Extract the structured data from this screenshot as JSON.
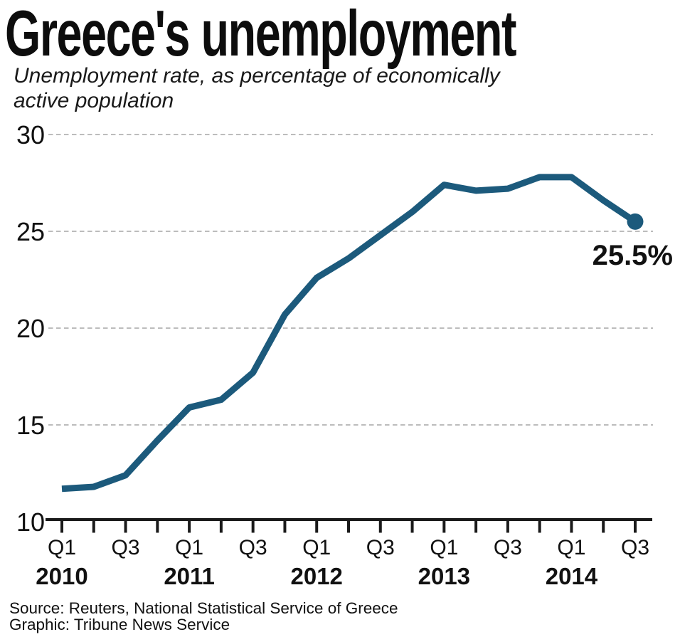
{
  "header": {
    "title": "Greece's unemployment",
    "subtitle_lines": [
      "Unemployment rate, as percentage of economically",
      "active population"
    ]
  },
  "chart_data": {
    "type": "line",
    "title": "Greece's unemployment",
    "subtitle": "Unemployment rate, as percentage of economically active population",
    "series_name": "Unemployment rate (%)",
    "ylim": [
      10,
      30
    ],
    "yticks": [
      30,
      25,
      20,
      15,
      10
    ],
    "grid": "horizontal-dashed",
    "legend": "none",
    "quarters": [
      {
        "year": "2010",
        "q": "Q1",
        "value": 11.7
      },
      {
        "year": "2010",
        "q": "Q2",
        "value": 11.8
      },
      {
        "year": "2010",
        "q": "Q3",
        "value": 12.4
      },
      {
        "year": "2010",
        "q": "Q4",
        "value": 14.2
      },
      {
        "year": "2011",
        "q": "Q1",
        "value": 15.9
      },
      {
        "year": "2011",
        "q": "Q2",
        "value": 16.3
      },
      {
        "year": "2011",
        "q": "Q3",
        "value": 17.7
      },
      {
        "year": "2011",
        "q": "Q4",
        "value": 20.7
      },
      {
        "year": "2012",
        "q": "Q1",
        "value": 22.6
      },
      {
        "year": "2012",
        "q": "Q2",
        "value": 23.6
      },
      {
        "year": "2012",
        "q": "Q3",
        "value": 24.8
      },
      {
        "year": "2012",
        "q": "Q4",
        "value": 26.0
      },
      {
        "year": "2013",
        "q": "Q1",
        "value": 27.4
      },
      {
        "year": "2013",
        "q": "Q2",
        "value": 27.1
      },
      {
        "year": "2013",
        "q": "Q3",
        "value": 27.2
      },
      {
        "year": "2013",
        "q": "Q4",
        "value": 27.8
      },
      {
        "year": "2014",
        "q": "Q1",
        "value": 27.8
      },
      {
        "year": "2014",
        "q": "Q2",
        "value": 26.6
      },
      {
        "year": "2014",
        "q": "Q3",
        "value": 25.5
      }
    ],
    "x_tick_labels_shown": [
      "Q1",
      "Q3"
    ],
    "end_marker": {
      "x": "2014 Q3",
      "value": 25.5,
      "label": "25.5%"
    },
    "colors": {
      "line": "#1c5a7c",
      "marker": "#1c5a7c",
      "grid": "#bcbcbc",
      "axis": "#1a1a1a",
      "text": "#111111"
    }
  },
  "footer": {
    "lines": [
      "Source: Reuters, National Statistical Service of Greece",
      "Graphic: Tribune News Service"
    ]
  }
}
